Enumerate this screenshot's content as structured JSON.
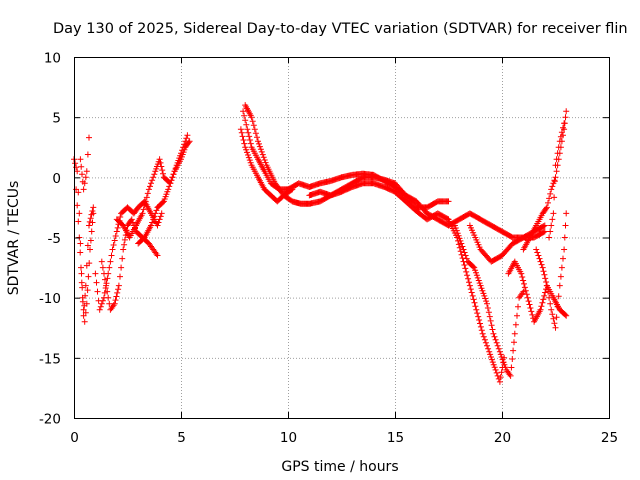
{
  "chart_data": {
    "type": "scatter",
    "title": "Day 130 of 2025, Sidereal Day-to-day VTEC variation (SDTVAR) for receiver flin",
    "xlabel": "GPS time / hours",
    "ylabel": "SDTVAR / TECUs",
    "xlim": [
      0,
      25
    ],
    "ylim": [
      -20,
      10
    ],
    "xticks": [
      0,
      5,
      10,
      15,
      20,
      25
    ],
    "xtick_labels": [
      "0",
      "5",
      "10",
      "15",
      "20",
      "25"
    ],
    "yticks": [
      -20,
      -15,
      -10,
      -5,
      0,
      5,
      10
    ],
    "ytick_labels": [
      "-20",
      "-15",
      "-10",
      "-5",
      "0",
      "5",
      "10"
    ],
    "grid": true,
    "marker": "+",
    "series": [
      {
        "name": "SDTVAR",
        "color": "#ff0000",
        "tracks": [
          [
            [
              0.0,
              1.5
            ],
            [
              0.15,
              0.5
            ],
            [
              0.25,
              -3
            ],
            [
              0.35,
              -8
            ],
            [
              0.45,
              -11.5
            ],
            [
              0.55,
              -9
            ],
            [
              0.7,
              -4
            ],
            [
              0.9,
              -2.5
            ]
          ],
          [
            [
              0.1,
              -1
            ],
            [
              0.25,
              -5
            ],
            [
              0.4,
              -10
            ],
            [
              0.5,
              -12
            ],
            [
              0.6,
              -10.5
            ],
            [
              0.75,
              -6
            ],
            [
              0.9,
              -3
            ]
          ],
          [
            [
              0.3,
              1.5
            ],
            [
              0.45,
              -1
            ],
            [
              0.6,
              0.5
            ],
            [
              0.7,
              3.3
            ]
          ],
          [
            [
              1.0,
              -8
            ],
            [
              1.2,
              -11
            ],
            [
              1.4,
              -10
            ],
            [
              1.6,
              -8
            ],
            [
              1.8,
              -6
            ],
            [
              2.0,
              -4.5
            ],
            [
              2.2,
              -3
            ],
            [
              2.5,
              -2.5
            ],
            [
              2.8,
              -3
            ],
            [
              3.0,
              -2.5
            ],
            [
              3.3,
              -2
            ],
            [
              3.6,
              -3
            ],
            [
              3.9,
              -4
            ],
            [
              4.1,
              -3
            ]
          ],
          [
            [
              1.3,
              -7
            ],
            [
              1.5,
              -9
            ],
            [
              1.7,
              -11
            ],
            [
              1.9,
              -10.5
            ],
            [
              2.1,
              -9
            ],
            [
              2.3,
              -6
            ],
            [
              2.5,
              -4
            ],
            [
              2.7,
              -3.5
            ],
            [
              2.9,
              -4.5
            ],
            [
              3.2,
              -5
            ],
            [
              3.5,
              -5.5
            ],
            [
              3.9,
              -6.5
            ]
          ],
          [
            [
              2.0,
              -3.5
            ],
            [
              2.3,
              -4
            ],
            [
              2.6,
              -5
            ],
            [
              2.9,
              -4
            ],
            [
              3.2,
              -3
            ],
            [
              3.5,
              -1
            ],
            [
              3.8,
              0.5
            ],
            [
              4.0,
              1.5
            ],
            [
              4.2,
              0
            ],
            [
              4.5,
              -0.5
            ],
            [
              4.8,
              1
            ],
            [
              5.0,
              2
            ],
            [
              5.3,
              3.5
            ]
          ],
          [
            [
              3.0,
              -5.5
            ],
            [
              3.3,
              -5
            ],
            [
              3.6,
              -4
            ],
            [
              3.9,
              -2.5
            ],
            [
              4.2,
              -2
            ],
            [
              4.4,
              -1
            ],
            [
              4.7,
              0.5
            ],
            [
              5.0,
              1.5
            ],
            [
              5.2,
              2.5
            ],
            [
              5.4,
              3
            ]
          ],
          [
            [
              7.9,
              5.5
            ],
            [
              8.1,
              4
            ],
            [
              8.3,
              2.5
            ],
            [
              8.6,
              1.5
            ],
            [
              8.9,
              0.5
            ],
            [
              9.2,
              -0.5
            ],
            [
              9.6,
              -1
            ],
            [
              10.0,
              -1
            ]
          ],
          [
            [
              7.8,
              4
            ],
            [
              8.0,
              2.5
            ],
            [
              8.3,
              1
            ],
            [
              8.6,
              0
            ],
            [
              8.9,
              -1
            ],
            [
              9.2,
              -1.5
            ],
            [
              9.5,
              -2
            ],
            [
              9.8,
              -1.5
            ],
            [
              10.2,
              -1
            ]
          ],
          [
            [
              8.0,
              6
            ],
            [
              8.3,
              5
            ],
            [
              8.6,
              3
            ],
            [
              9.0,
              1
            ],
            [
              9.4,
              -0.5
            ],
            [
              9.8,
              -1.5
            ],
            [
              10.2,
              -2
            ],
            [
              10.6,
              -2.2
            ],
            [
              11.0,
              -2.2
            ],
            [
              11.5,
              -2
            ],
            [
              12.0,
              -1.5
            ],
            [
              12.5,
              -1
            ],
            [
              13.0,
              -0.5
            ],
            [
              13.5,
              0
            ],
            [
              14.0,
              0
            ],
            [
              14.5,
              -0.2
            ],
            [
              15.0,
              -0.5
            ],
            [
              15.5,
              -1.5
            ],
            [
              16.0,
              -2.5
            ],
            [
              16.5,
              -2.5
            ],
            [
              17.0,
              -2
            ],
            [
              17.5,
              -2
            ]
          ],
          [
            [
              10.0,
              -1
            ],
            [
              10.5,
              -0.5
            ],
            [
              11.0,
              -0.8
            ],
            [
              11.5,
              -0.5
            ],
            [
              12.0,
              -0.3
            ],
            [
              12.5,
              0
            ],
            [
              13.0,
              0.2
            ],
            [
              13.5,
              0.3
            ],
            [
              14.0,
              0.2
            ],
            [
              14.5,
              -0.3
            ],
            [
              15.0,
              -0.8
            ],
            [
              15.5,
              -1.5
            ],
            [
              16.0,
              -2
            ],
            [
              16.5,
              -3
            ],
            [
              17.0,
              -3.5
            ],
            [
              17.5,
              -4
            ],
            [
              18.0,
              -3.5
            ],
            [
              18.5,
              -3
            ],
            [
              19.0,
              -3.5
            ],
            [
              19.5,
              -4
            ],
            [
              20.0,
              -4.5
            ],
            [
              20.5,
              -5
            ],
            [
              21.0,
              -5
            ],
            [
              21.5,
              -4.5
            ],
            [
              22.0,
              -4
            ]
          ],
          [
            [
              11.0,
              -1.5
            ],
            [
              11.5,
              -1.2
            ],
            [
              12.0,
              -1.5
            ],
            [
              12.5,
              -1.2
            ],
            [
              13.0,
              -0.8
            ],
            [
              13.5,
              -0.5
            ],
            [
              14.0,
              -0.5
            ],
            [
              14.5,
              -0.8
            ],
            [
              15.0,
              -1.2
            ],
            [
              15.5,
              -2
            ],
            [
              16.0,
              -2.8
            ],
            [
              16.5,
              -3.5
            ],
            [
              17.0,
              -3
            ],
            [
              17.5,
              -3.5
            ]
          ],
          [
            [
              17.5,
              -3.5
            ],
            [
              17.9,
              -5
            ],
            [
              18.2,
              -7
            ],
            [
              18.5,
              -9
            ],
            [
              18.8,
              -11
            ],
            [
              19.1,
              -13
            ],
            [
              19.4,
              -14.5
            ],
            [
              19.7,
              -16
            ],
            [
              19.9,
              -17
            ],
            [
              20.1,
              -15
            ]
          ],
          [
            [
              17.8,
              -4
            ],
            [
              18.1,
              -5.5
            ],
            [
              18.4,
              -7
            ],
            [
              18.7,
              -7.5
            ],
            [
              19.0,
              -9
            ],
            [
              19.3,
              -10.5
            ],
            [
              19.6,
              -13
            ],
            [
              19.9,
              -14.5
            ],
            [
              20.2,
              -16
            ],
            [
              20.4,
              -16.5
            ],
            [
              20.6,
              -13
            ],
            [
              20.8,
              -10
            ],
            [
              21.0,
              -9.5
            ]
          ],
          [
            [
              18.5,
              -4
            ],
            [
              19.0,
              -6
            ],
            [
              19.5,
              -7
            ],
            [
              20.0,
              -6.5
            ],
            [
              20.5,
              -5.5
            ],
            [
              21.0,
              -5
            ],
            [
              21.5,
              -5
            ],
            [
              22.0,
              -4.5
            ]
          ],
          [
            [
              20.3,
              -8
            ],
            [
              20.6,
              -7
            ],
            [
              20.9,
              -8
            ],
            [
              21.2,
              -10
            ],
            [
              21.5,
              -12
            ],
            [
              21.8,
              -11
            ],
            [
              22.1,
              -9
            ],
            [
              22.4,
              -10
            ],
            [
              22.7,
              -11
            ],
            [
              23.0,
              -11.5
            ]
          ],
          [
            [
              21.0,
              -6
            ],
            [
              21.3,
              -5
            ],
            [
              21.6,
              -4
            ],
            [
              21.9,
              -3
            ],
            [
              22.1,
              -2.5
            ],
            [
              22.3,
              -1
            ],
            [
              22.5,
              0
            ],
            [
              22.7,
              2
            ],
            [
              22.9,
              4
            ],
            [
              23.0,
              5.5
            ]
          ],
          [
            [
              21.6,
              -6
            ],
            [
              21.9,
              -7.5
            ],
            [
              22.1,
              -9
            ],
            [
              22.3,
              -11
            ],
            [
              22.5,
              -12.5
            ],
            [
              22.7,
              -9
            ],
            [
              22.9,
              -6
            ],
            [
              23.0,
              -3
            ]
          ],
          [
            [
              22.2,
              -5
            ],
            [
              22.4,
              -3
            ],
            [
              22.5,
              1
            ],
            [
              22.7,
              3
            ],
            [
              22.9,
              4.5
            ]
          ]
        ]
      }
    ]
  }
}
